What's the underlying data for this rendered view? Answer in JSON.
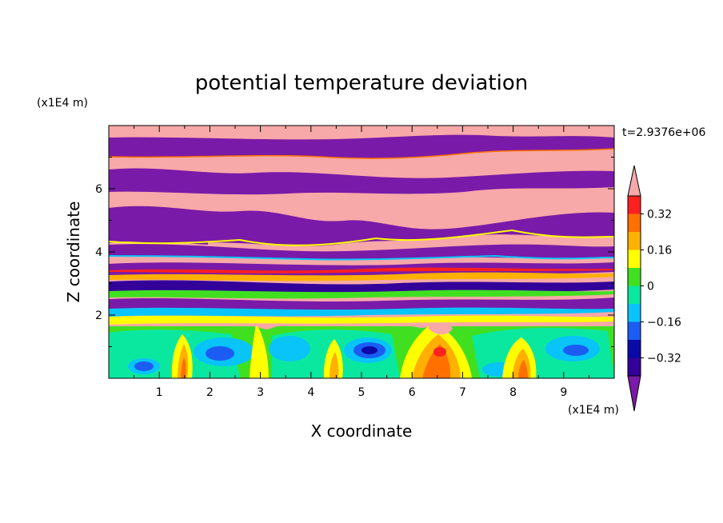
{
  "chart_data": {
    "type": "heatmap",
    "title": "potential temperature deviation",
    "xlabel": "X coordinate",
    "ylabel": "Z coordinate",
    "x_unit": "(x1E4 m)",
    "y_unit": "(x1E4 m)",
    "time_label": "t=2.9376e+06",
    "xlim": [
      0,
      10
    ],
    "ylim": [
      0,
      8
    ],
    "x_ticks": [
      "1",
      "2",
      "3",
      "4",
      "5",
      "6",
      "7",
      "8",
      "9"
    ],
    "y_ticks": [
      "2",
      "4",
      "6"
    ],
    "colorbar": {
      "levels": [
        -0.4,
        -0.32,
        -0.24,
        -0.16,
        -0.08,
        0,
        0.08,
        0.16,
        0.24,
        0.32,
        0.4
      ],
      "labels": [
        "0.32",
        "0.16",
        "0",
        "−0.16",
        "−0.32"
      ],
      "label_values": [
        0.32,
        0.16,
        0,
        -0.16,
        -0.32
      ],
      "colors": [
        "#330099",
        "#0a0aa8",
        "#1c5cf2",
        "#08c4f8",
        "#0ae8a0",
        "#40e020",
        "#ffff00",
        "#ffb000",
        "#ff7000",
        "#ff2020"
      ],
      "under_color": "#7a1aa8",
      "over_color": "#f7a8a8"
    },
    "regions": [
      {
        "level": "over",
        "description": "Upper layer z>4: alternating bands near +0.4 and below -0.4"
      },
      {
        "level": "mixed",
        "description": "Transition layer z~2-4: fine-scale filaments"
      },
      {
        "level": "low-mid",
        "description": "Boundary layer z<2: convective cells, values ~-0.3 to +0.4"
      }
    ]
  }
}
